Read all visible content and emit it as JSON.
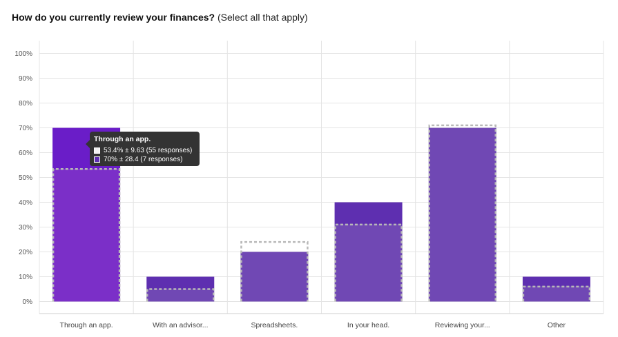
{
  "title": {
    "question": "How do you currently review your finances?",
    "qualifier": "(Select all that apply)"
  },
  "colors": {
    "bar": "#7048b4",
    "bar_highlight": "#7b2fc8",
    "bar_top": "#5e2fb0",
    "bar_top_highlight": "#6a1dc8",
    "benchmark_outline": "#b8b8b8",
    "grid": "#e4e4e4",
    "tooltip_bg": "#333333",
    "swatch_benchmark": "#f2f2f2",
    "swatch_current": "#5e2fb0"
  },
  "chart_data": {
    "type": "bar",
    "categories": [
      "Through an app.",
      "With an advisor...",
      "Spreadsheets.",
      "In your head.",
      "Reviewing your...",
      "Other"
    ],
    "series": [
      {
        "values": [
          70,
          10,
          20,
          40,
          70,
          10
        ]
      },
      {
        "values": [
          53.4,
          5,
          24,
          31,
          71,
          6
        ]
      }
    ],
    "ylim": [
      0,
      100
    ],
    "y_ticks": [
      "0%",
      "10%",
      "20%",
      "30%",
      "40%",
      "50%",
      "60%",
      "70%",
      "80%",
      "90%",
      "100%"
    ],
    "grid": true,
    "highlighted_category": 0
  },
  "tooltip": {
    "title": "Through an app.",
    "rows": [
      {
        "text": "53.4% ± 9.63 (55 responses)",
        "swatch": "#f2f2f2"
      },
      {
        "text": "70% ± 28.4 (7 responses)",
        "swatch": "#5e2fb0"
      }
    ]
  }
}
